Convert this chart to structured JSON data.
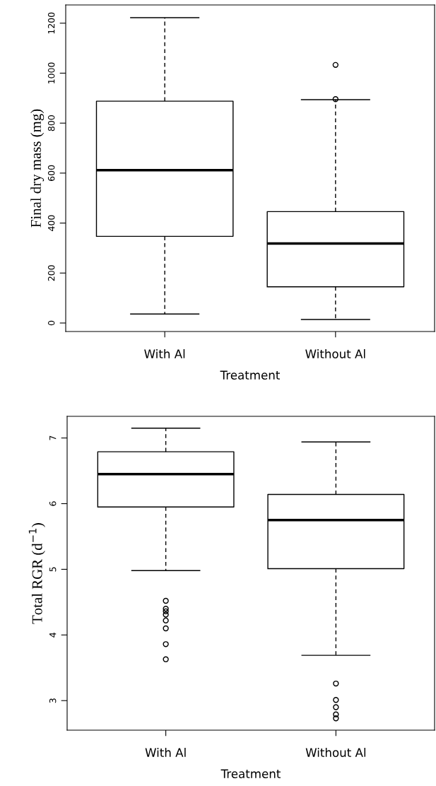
{
  "chart_data": [
    {
      "type": "box",
      "xlabel": "Treatment",
      "ylabel": "Final dry mass (mg)",
      "categories": [
        "With Al",
        "Without Al"
      ],
      "boxes": [
        {
          "low": 36,
          "q1": 347,
          "median": 612,
          "q3": 888,
          "high": 1222
        },
        {
          "low": 14,
          "q1": 145,
          "median": 318,
          "q3": 446,
          "high": 894,
          "outliers": [
            896,
            1033
          ]
        }
      ],
      "ylim": [
        -34,
        1273
      ],
      "yticks": [
        0,
        200,
        400,
        600,
        800,
        1000,
        1200
      ],
      "grid": false,
      "legend": false,
      "marker": "circle"
    },
    {
      "type": "box",
      "xlabel": "Treatment",
      "ylabel": "Total RGR (d$^{−1}$)",
      "categories": [
        "With Al",
        "Without Al"
      ],
      "boxes": [
        {
          "low": 4.98,
          "q1": 5.95,
          "median": 6.45,
          "q3": 6.79,
          "high": 7.15,
          "outliers": [
            4.52,
            4.4,
            4.36,
            4.31,
            4.22,
            4.1,
            3.86,
            3.63
          ]
        },
        {
          "low": 3.69,
          "q1": 5.01,
          "median": 5.75,
          "q3": 6.14,
          "high": 6.94,
          "outliers": [
            3.26,
            3.01,
            2.9,
            2.79,
            2.73
          ]
        }
      ],
      "ylim": [
        2.55,
        7.33
      ],
      "yticks": [
        3,
        4,
        5,
        6,
        7
      ],
      "grid": false,
      "legend": false,
      "marker": "circle"
    }
  ]
}
